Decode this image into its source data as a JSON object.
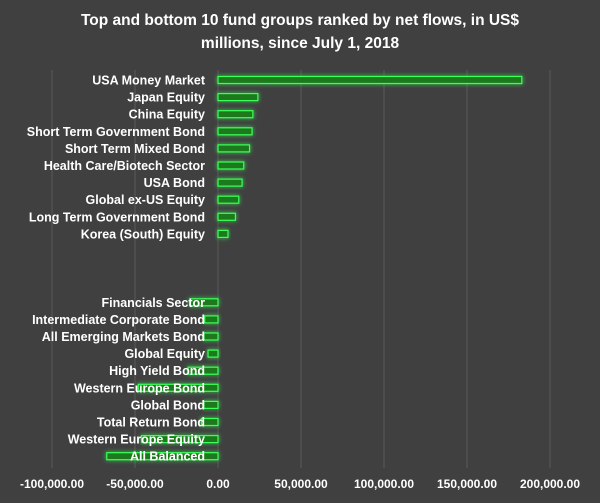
{
  "chart_data": {
    "type": "bar",
    "orientation": "horizontal",
    "title": "Top and bottom 10 fund groups ranked by net flows, in US$ millions, since July 1, 2018",
    "xlabel": "",
    "ylabel": "",
    "xlim": [
      -100000,
      200000
    ],
    "x_ticks": [
      -100000,
      -50000,
      0,
      50000,
      100000,
      150000,
      200000
    ],
    "x_tick_labels": [
      "-100,000.00",
      "-50,000.00",
      "0.00",
      "50,000.00",
      "100,000.00",
      "150,000.00",
      "200,000.00"
    ],
    "grid": true,
    "legend": "none",
    "categories": [
      "USA Money Market",
      "Japan Equity",
      "China Equity",
      "Short Term Government Bond",
      "Short Term Mixed Bond",
      "Health Care/Biotech Sector",
      "USA Bond",
      "Global ex-US Equity",
      "Long Term Government Bond",
      "Korea (South) Equity",
      "",
      "",
      "",
      "Financials Sector",
      "Intermediate Corporate Bond",
      "All Emerging Markets Bond",
      "Global Equity",
      "High Yield Bond",
      "Western Europe Bond",
      "Global Bond",
      "Total Return Bond",
      "Western Europe Equity",
      "All Balanced"
    ],
    "values": [
      183000,
      24000,
      21000,
      20500,
      19000,
      15500,
      14500,
      12500,
      10500,
      6000,
      null,
      null,
      null,
      -17000,
      -8000,
      -8500,
      -6000,
      -18000,
      -48000,
      -8500,
      -10000,
      -46000,
      -67000
    ],
    "colors": {
      "bar_fill": "#1e7a1e",
      "bar_stroke": "#3dff5a",
      "glow": "#2cff4a",
      "gridline": "#5a5a5a",
      "background": "#404040",
      "text": "#ffffff"
    }
  }
}
